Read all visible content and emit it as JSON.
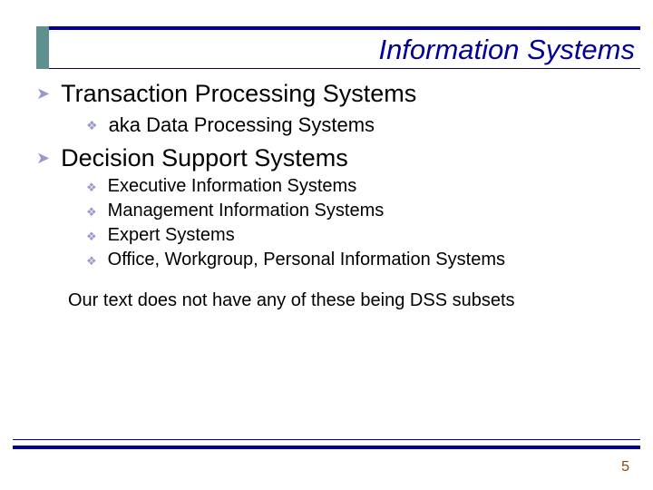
{
  "colors": {
    "rule": "#000099",
    "accent_bar": "#5f8f8f",
    "bullet": "#9999cc",
    "text": "#000000",
    "pagenum": "#8b4513",
    "background": "#ffffff"
  },
  "title": "Information Systems",
  "bullets": {
    "b1": "Transaction Processing Systems",
    "b1_1": "aka Data Processing Systems",
    "b2": "Decision Support Systems",
    "b2_1": "Executive Information Systems",
    "b2_2": "Management Information Systems",
    "b2_3": "Expert Systems",
    "b2_4": "Office, Workgroup, Personal Information Systems"
  },
  "note": "Our text does not have any of these being DSS subsets",
  "page": "5",
  "glyphs": {
    "arrow": "➤",
    "diamond": "❖"
  }
}
